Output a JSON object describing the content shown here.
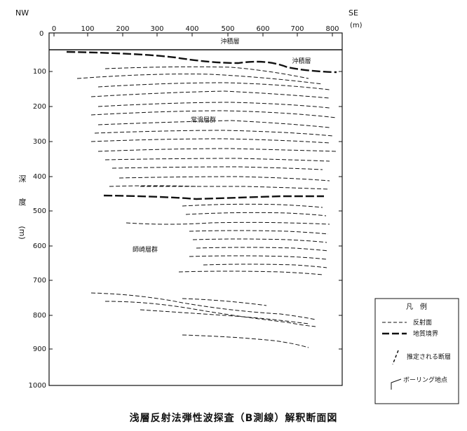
{
  "corners": {
    "left": "NW",
    "right": "SE"
  },
  "distance_unit": "(m)",
  "depth_label_chars": [
    "深",
    "度",
    "(m)"
  ],
  "x_ticks": [
    "0",
    "100",
    "200",
    "300",
    "400",
    "500",
    "600",
    "700",
    "800"
  ],
  "depth_zero_label": "0",
  "y_ticks": [
    "100",
    "200",
    "300",
    "400",
    "500",
    "600",
    "700",
    "800",
    "900",
    "1000"
  ],
  "labels": {
    "alluvium_top": "沖積層",
    "alluvium_right": "沖積層",
    "upper_group": "常滑層群",
    "lower_group": "師崎層群"
  },
  "legend": {
    "title": "凡　例",
    "reflection": "反射面",
    "boundary": "地質境界",
    "fault": "推定される断層",
    "boring": "ボーリング地点"
  },
  "caption": "浅層反射法弾性波探査（B測線）解釈断面図"
}
